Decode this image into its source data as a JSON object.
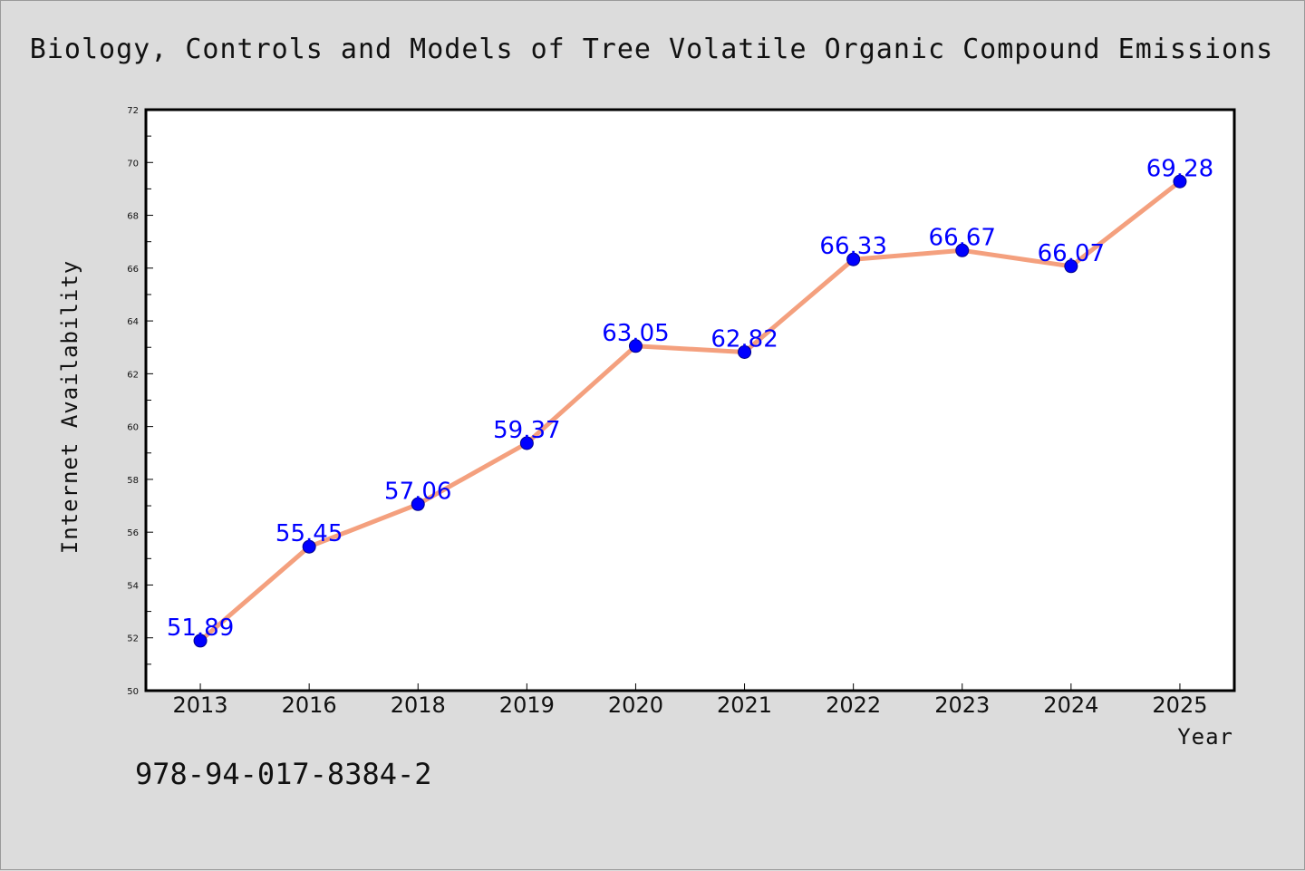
{
  "colors": {
    "background": "#dcdcdc",
    "plot_background": "#ffffff",
    "line": "#f4a07e",
    "marker": "#0000ff",
    "data_label": "#0000ff"
  },
  "isbn": "978-94-017-8384-2",
  "chart_data": {
    "type": "line",
    "title": "Biology, Controls and Models of Tree Volatile Organic Compound Emissions",
    "xlabel": "Year",
    "ylabel": "Internet Availability",
    "categories": [
      "2013",
      "2016",
      "2018",
      "2019",
      "2020",
      "2021",
      "2022",
      "2023",
      "2024",
      "2025"
    ],
    "values": [
      51.89,
      55.45,
      57.06,
      59.37,
      63.05,
      62.82,
      66.33,
      66.67,
      66.07,
      69.28
    ],
    "data_labels": [
      "51.89",
      "55.45",
      "57.06",
      "59.37",
      "63.05",
      "62.82",
      "66.33",
      "66.67",
      "66.07",
      "69.28"
    ],
    "ylim": [
      50,
      72
    ],
    "yticks": [
      "50",
      "52",
      "54",
      "56",
      "58",
      "60",
      "62",
      "64",
      "66",
      "68",
      "70",
      "72"
    ],
    "grid": false,
    "legend": "none"
  }
}
